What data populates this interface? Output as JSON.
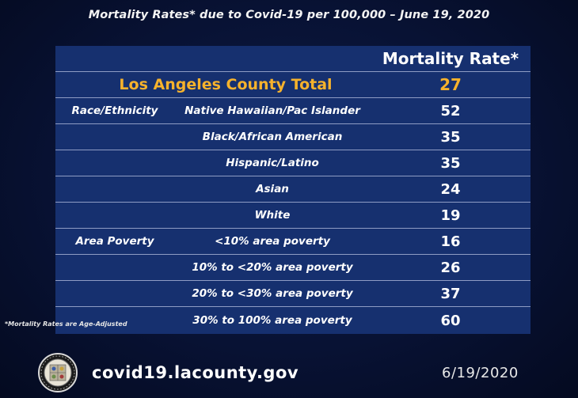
{
  "title": "Mortality Rates* due to Covid-19 per 100,000 – June 19, 2020",
  "table": {
    "header": "Mortality Rate*",
    "total": {
      "label": "Los Angeles County Total",
      "value": "27"
    },
    "rows": [
      {
        "category": "Race/Ethnicity",
        "label": "Native Hawaiian/Pac Islander",
        "value": "52"
      },
      {
        "category": "",
        "label": "Black/African American",
        "value": "35"
      },
      {
        "category": "",
        "label": "Hispanic/Latino",
        "value": "35"
      },
      {
        "category": "",
        "label": "Asian",
        "value": "24"
      },
      {
        "category": "",
        "label": "White",
        "value": "19"
      },
      {
        "category": "Area Poverty",
        "label": "<10% area poverty",
        "value": "16"
      },
      {
        "category": "",
        "label": "10% to <20% area poverty",
        "value": "26"
      },
      {
        "category": "",
        "label": "20% to <30% area poverty",
        "value": "37"
      },
      {
        "category": "",
        "label": "30% to 100% area poverty",
        "value": "60"
      }
    ]
  },
  "footnote": "*Mortality Rates are Age-Adjusted",
  "footer": {
    "url": "covid19.lacounty.gov",
    "date": "6/19/2020",
    "seal_icon": "county-seal-icon"
  },
  "colors": {
    "background": "#081234",
    "panel": "#16306f",
    "accent": "#f6b22c",
    "divider": "#8e9cc4"
  }
}
